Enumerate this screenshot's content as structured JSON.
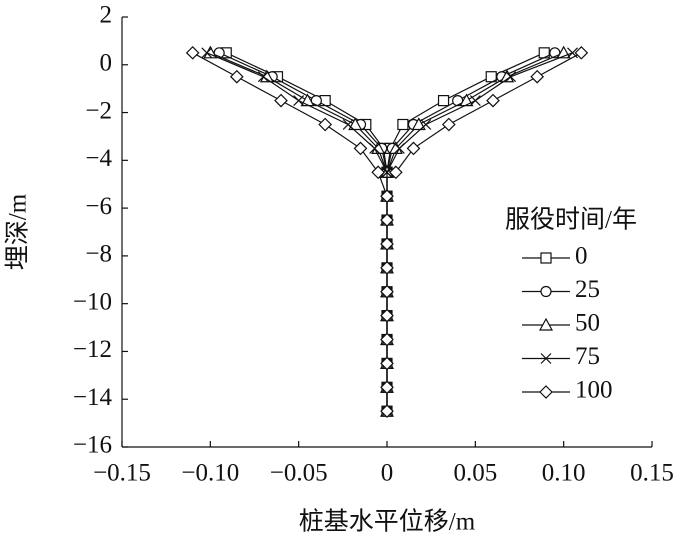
{
  "chart_data": {
    "type": "line",
    "xlabel": "桩基水平位移/m",
    "ylabel": "埋深/m",
    "legend_title": "服役时间/年",
    "xlim": [
      -0.15,
      0.15
    ],
    "ylim": [
      -16,
      2
    ],
    "xticks": [
      {
        "value": -0.15,
        "label": "−0.15"
      },
      {
        "value": -0.1,
        "label": "−0.10"
      },
      {
        "value": -0.05,
        "label": "−0.05"
      },
      0,
      0.05,
      {
        "value": 0.1,
        "label": "0.10"
      },
      0.15
    ],
    "yticks": [
      2,
      0,
      {
        "value": -2,
        "label": "−2"
      },
      {
        "value": -4,
        "label": "−4"
      },
      {
        "value": -6,
        "label": "−6"
      },
      {
        "value": -8,
        "label": "−8"
      },
      {
        "value": -10,
        "label": "−10"
      },
      {
        "value": -12,
        "label": "−12"
      },
      {
        "value": -14,
        "label": "−14"
      },
      {
        "value": -16,
        "label": "−16"
      }
    ],
    "y": [
      0.5,
      -0.5,
      -1.5,
      -2.5,
      -3.5,
      -4.5,
      -5.5,
      -6.5,
      -7.5,
      -8.5,
      -9.5,
      -10.5,
      -11.5,
      -12.5,
      -13.5,
      -14.5,
      null,
      0.5,
      -0.5,
      -1.5,
      -2.5,
      -3.5,
      -4.5
    ],
    "series": [
      {
        "name": "0",
        "marker": "square",
        "color": "#111",
        "x": [
          -0.091,
          -0.062,
          -0.035,
          -0.012,
          -0.002,
          0,
          0,
          0,
          0,
          0,
          0,
          0,
          0,
          0,
          0,
          0,
          null,
          0.089,
          0.059,
          0.032,
          0.009,
          0.002,
          0
        ]
      },
      {
        "name": "25",
        "marker": "circle",
        "color": "#111",
        "x": [
          -0.095,
          -0.065,
          -0.04,
          -0.015,
          -0.003,
          0,
          0,
          0,
          0,
          0,
          0,
          0,
          0,
          0,
          0,
          0,
          null,
          0.095,
          0.065,
          0.04,
          0.015,
          0.003,
          0
        ]
      },
      {
        "name": "50",
        "marker": "triangle",
        "color": "#111",
        "x": [
          -0.1,
          -0.068,
          -0.045,
          -0.018,
          -0.005,
          0,
          0,
          0,
          0,
          0,
          0,
          0,
          0,
          0,
          0,
          0,
          null,
          0.1,
          0.068,
          0.045,
          0.018,
          0.005,
          0
        ]
      },
      {
        "name": "75",
        "marker": "cross",
        "color": "#111",
        "x": [
          -0.102,
          -0.07,
          -0.05,
          -0.022,
          -0.007,
          0,
          0,
          0,
          0,
          0,
          0,
          0,
          0,
          0,
          0,
          0,
          null,
          0.105,
          0.07,
          0.05,
          0.022,
          0.007,
          0
        ]
      },
      {
        "name": "100",
        "marker": "diamond",
        "color": "#111",
        "x": [
          -0.11,
          -0.085,
          -0.06,
          -0.035,
          -0.015,
          -0.005,
          0,
          0,
          0,
          0,
          0,
          0,
          0,
          0,
          0,
          0,
          null,
          0.11,
          0.085,
          0.06,
          0.035,
          0.015,
          0.005
        ]
      }
    ]
  }
}
